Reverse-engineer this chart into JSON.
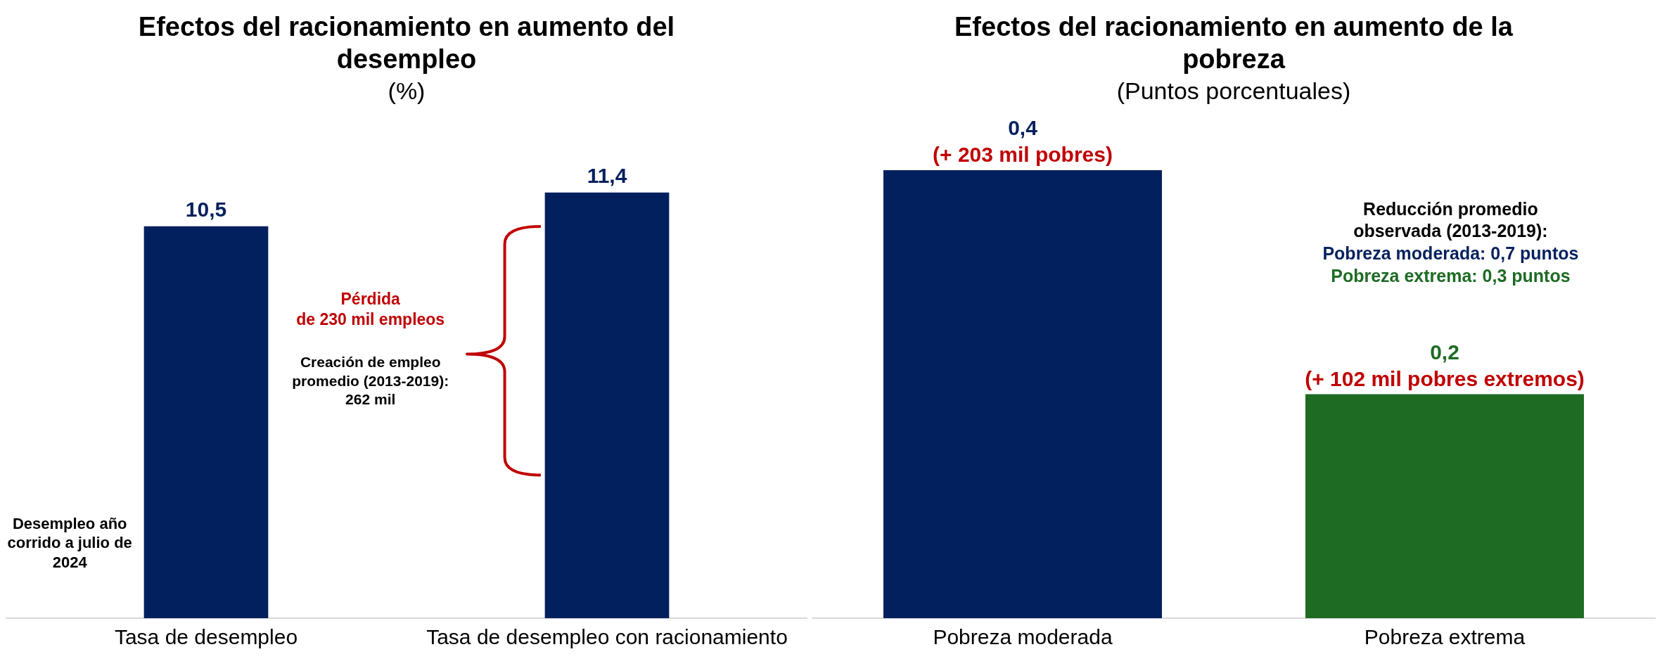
{
  "chart_data": [
    {
      "type": "bar",
      "title": "Efectos del racionamiento en aumento del desempleo",
      "subtitle": "(%)",
      "categories": [
        "Tasa de desempleo",
        "Tasa de desempleo con racionamiento"
      ],
      "values": [
        10.5,
        11.4
      ],
      "color": "#03205e",
      "value_labels": [
        "10,5",
        "11,4"
      ],
      "tick_labels": "x",
      "annotations": [
        "Pérdida de 230 mil empleos",
        "Creación de empleo promedio (2013-2019): 262 mil",
        "Desempleo año corrido a julio de 2024"
      ]
    },
    {
      "type": "bar",
      "title": "Efectos del racionamiento en aumento de la pobreza",
      "subtitle": "(Puntos porcentuales)",
      "categories": [
        "Pobreza moderada",
        "Pobreza extrema"
      ],
      "values": [
        0.4,
        0.2
      ],
      "colors": [
        "#03205e",
        "#1e6b24"
      ],
      "value_labels": [
        "0,4",
        "0,2"
      ],
      "tick_labels": "x",
      "annotations": [
        {
          "text": "(+ 203 mil pobres)",
          "x": "Pobreza moderada",
          "y": 0.4
        },
        {
          "text": "(+ 102 mil pobres extremos)",
          "x": "Pobreza extrema",
          "y": 0.2
        },
        "Reducción promedio observada (2013-2019):",
        "Pobreza moderada: 0,7 puntos",
        "Pobreza extrema: 0,3 puntos"
      ]
    }
  ]
}
